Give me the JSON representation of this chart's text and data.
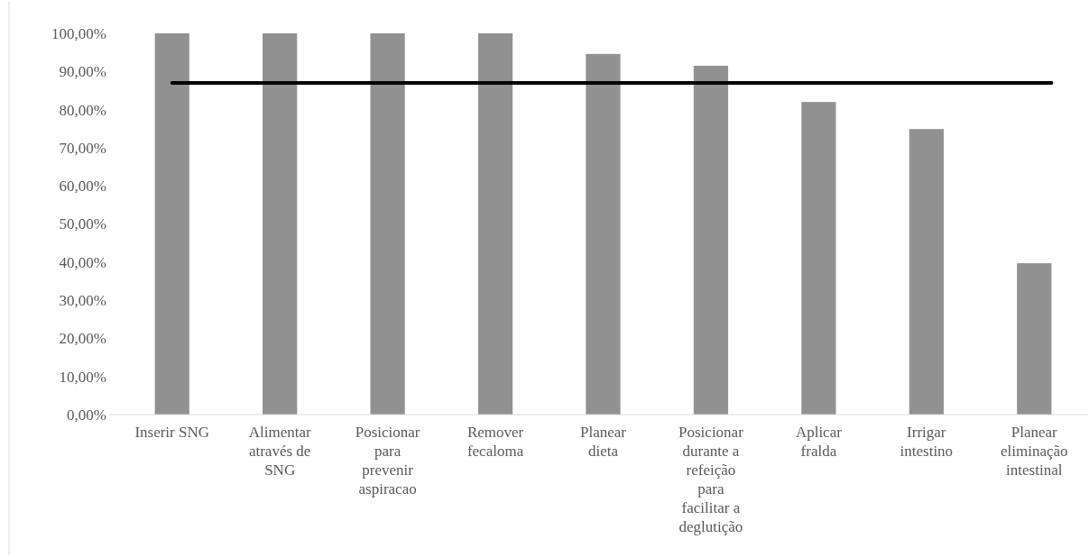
{
  "chart_data": {
    "type": "bar",
    "categories": [
      "Inserir SNG",
      "Alimentar através de SNG",
      "Posicionar para prevenir aspiracao",
      "Remover fecaloma",
      "Planear dieta",
      "Posicionar durante a refeição para facilitar a deglutição",
      "Aplicar fralda",
      "Irrigar intestino",
      "Planear eliminação intestinal"
    ],
    "values": [
      100,
      100,
      100,
      100,
      94.6,
      91.5,
      82,
      74.9,
      39.7
    ],
    "color": "#919191",
    "ylim": [
      0,
      100
    ],
    "yticks": [
      {
        "value": 0,
        "label": "0,00%"
      },
      {
        "value": 10,
        "label": "10,00%"
      },
      {
        "value": 20,
        "label": "20,00%"
      },
      {
        "value": 30,
        "label": "30,00%"
      },
      {
        "value": 40,
        "label": "40,00%"
      },
      {
        "value": 50,
        "label": "50,00%"
      },
      {
        "value": 60,
        "label": "60,00%"
      },
      {
        "value": 70,
        "label": "70,00%"
      },
      {
        "value": 80,
        "label": "80,00%"
      },
      {
        "value": 90,
        "label": "90,00%"
      },
      {
        "value": 100,
        "label": "100,00%"
      }
    ],
    "ref_lines": [
      {
        "axis": "y",
        "value": 87,
        "color": "#000000"
      }
    ],
    "grid": false
  }
}
